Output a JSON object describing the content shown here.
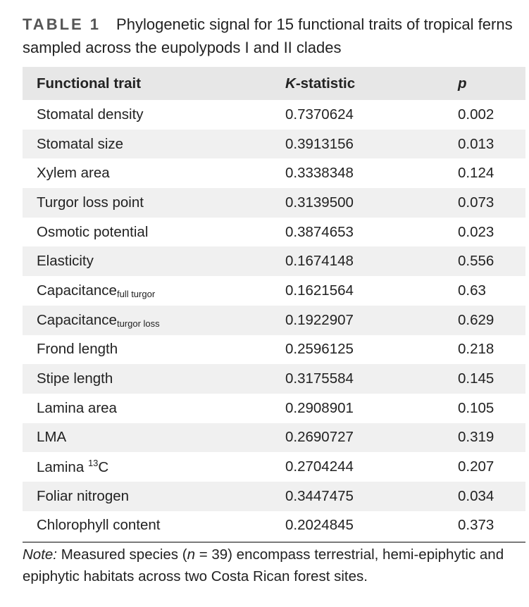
{
  "caption": {
    "label": "TABLE 1",
    "text": "Phylogenetic signal for 15 functional traits of tropical ferns sampled across the eupolypods I and II clades"
  },
  "table": {
    "headers": {
      "trait": "Functional trait",
      "k_italic": "K",
      "k_rest": "-statistic",
      "p": "p"
    },
    "rows": [
      {
        "trait": "Stomatal density",
        "k": "0.7370624",
        "p": "0.002"
      },
      {
        "trait": "Stomatal size",
        "k": "0.3913156",
        "p": "0.013"
      },
      {
        "trait": "Xylem area",
        "k": "0.3338348",
        "p": "0.124"
      },
      {
        "trait": "Turgor loss point",
        "k": "0.3139500",
        "p": "0.073"
      },
      {
        "trait": "Osmotic potential",
        "k": "0.3874653",
        "p": "0.023"
      },
      {
        "trait": "Elasticity",
        "k": "0.1674148",
        "p": "0.556"
      },
      {
        "trait": "Capacitance",
        "sub": "full turgor",
        "k": "0.1621564",
        "p": "0.63"
      },
      {
        "trait": "Capacitance",
        "sub": "turgor loss",
        "k": "0.1922907",
        "p": "0.629"
      },
      {
        "trait": "Frond length",
        "k": "0.2596125",
        "p": "0.218"
      },
      {
        "trait": "Stipe length",
        "k": "0.3175584",
        "p": "0.145"
      },
      {
        "trait": "Lamina area",
        "k": "0.2908901",
        "p": "0.105"
      },
      {
        "trait": "LMA",
        "k": "0.2690727",
        "p": "0.319"
      },
      {
        "trait": "Lamina ",
        "sup": "13",
        "trait_after": "C",
        "k": "0.2704244",
        "p": "0.207"
      },
      {
        "trait": "Foliar nitrogen",
        "k": "0.3447475",
        "p": "0.034"
      },
      {
        "trait": "Chlorophyll content",
        "k": "0.2024845",
        "p": "0.373"
      }
    ]
  },
  "note": {
    "label": "Note:",
    "text_1": " Measured species (",
    "n_italic": "n",
    "text_2": " = 39) encompass terrestrial, hemi-epiphytic and epiphytic habitats across two Costa Rican forest sites."
  }
}
